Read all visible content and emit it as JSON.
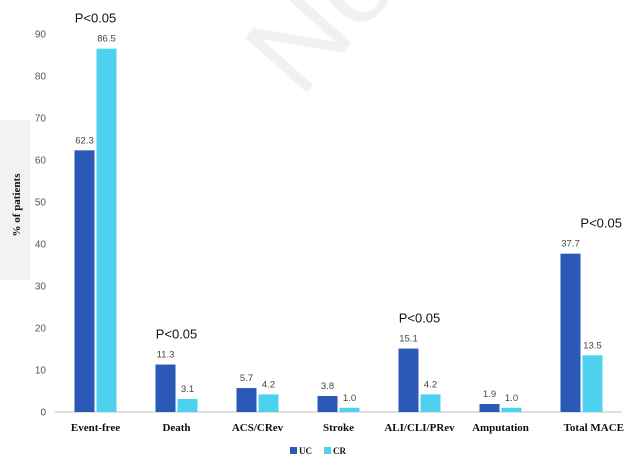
{
  "watermark": "Non",
  "chart_data": {
    "type": "bar",
    "categories": [
      "Event-free",
      "Death",
      "ACS/CRev",
      "Stroke",
      "ALI/CLI/PRev",
      "Amputation",
      "Total MACE"
    ],
    "series": [
      {
        "name": "UC",
        "color": "#2a59b8",
        "values": [
          62.3,
          11.3,
          5.7,
          3.8,
          15.1,
          1.9,
          37.7
        ]
      },
      {
        "name": "CR",
        "color": "#4ed1ef",
        "values": [
          86.5,
          3.1,
          4.2,
          1.0,
          4.2,
          1.0,
          13.5
        ]
      }
    ],
    "value_labels": [
      [
        "62.3",
        "11.3",
        "5.7",
        "3.8",
        "15.1",
        "1.9",
        "37.7"
      ],
      [
        "86.5",
        "3.1",
        "4.2",
        "1.0",
        "4.2",
        "1.0",
        "13.5"
      ]
    ],
    "yticks": [
      0,
      10,
      20,
      30,
      40,
      50,
      60,
      70,
      80,
      90
    ],
    "ylim": [
      0,
      90
    ],
    "ylabel": "% of patients",
    "xlabel": "",
    "title": "",
    "grid": false,
    "legend_position": "bottom-center",
    "annotations": [
      {
        "category": "Event-free",
        "text": "P<0.05"
      },
      {
        "category": "Death",
        "text": "P<0.05"
      },
      {
        "category": "ALI/CLI/PRev",
        "text": "P<0.05"
      },
      {
        "category": "Total MACE",
        "text": "P<0.05"
      }
    ]
  }
}
